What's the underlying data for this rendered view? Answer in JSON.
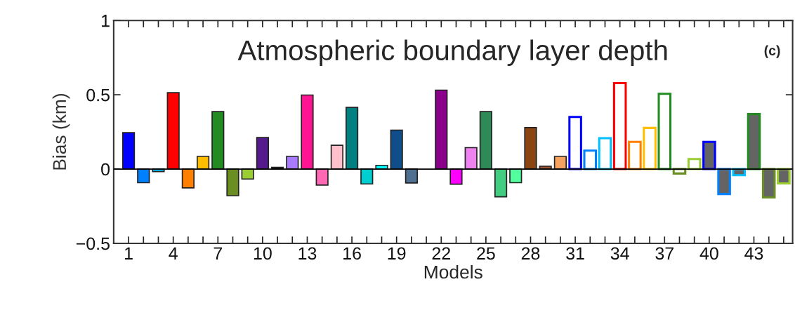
{
  "chart_data": {
    "type": "bar",
    "title": "Atmospheric boundary layer depth",
    "xlabel": "Models",
    "ylabel": "Bias (km)",
    "annotations": [
      "(c)"
    ],
    "x": [
      1,
      2,
      3,
      4,
      5,
      6,
      7,
      8,
      9,
      10,
      11,
      12,
      13,
      14,
      15,
      16,
      17,
      18,
      19,
      20,
      21,
      22,
      23,
      24,
      25,
      26,
      27,
      28,
      29,
      30,
      31,
      32,
      33,
      34,
      35,
      36,
      37,
      38,
      39,
      40,
      41,
      42,
      43,
      44,
      45
    ],
    "series": [
      {
        "values": [
          0.245,
          -0.092,
          -0.017,
          0.514,
          -0.127,
          0.085,
          0.387,
          -0.179,
          -0.067,
          0.212,
          0.011,
          0.085,
          0.498,
          -0.108,
          0.16,
          0.415,
          -0.1,
          0.025,
          0.262,
          -0.094,
          null,
          0.531,
          -0.102,
          0.144,
          0.387,
          -0.187,
          -0.092,
          0.279,
          0.019,
          0.085,
          null,
          null,
          null,
          null,
          null,
          null,
          null,
          null,
          null,
          null,
          null,
          null,
          null,
          null,
          null
        ],
        "colors": [
          "#0000ff",
          "#0080ff",
          "#00bfff",
          "#ff0000",
          "#ff8000",
          "#ffbf00",
          "#228b22",
          "#6b8e23",
          "#9acd32",
          "#551a8b",
          "#000000",
          "#a97bff",
          "#ff1493",
          "#ff69b4",
          "#ffc0cb",
          "#008080",
          "#00ced1",
          "#00ffff",
          "#104e8b",
          "#4f7090",
          null,
          "#8b008b",
          "#ff00ff",
          "#ee82ee",
          "#2e8b57",
          "#43cd80",
          "#54ff9f",
          "#8b4513",
          "#a0522d",
          "#f4a460",
          null,
          null,
          null,
          null,
          null,
          null,
          null,
          null,
          null,
          null,
          null,
          null,
          null,
          null,
          null
        ]
      },
      {
        "color": "#ffffff",
        "values": [
          null,
          null,
          null,
          null,
          null,
          null,
          null,
          null,
          null,
          null,
          null,
          null,
          null,
          null,
          null,
          null,
          null,
          null,
          null,
          null,
          null,
          null,
          null,
          null,
          null,
          null,
          null,
          null,
          null,
          null,
          0.351,
          0.124,
          0.208,
          0.578,
          0.183,
          0.277,
          0.506,
          -0.03,
          0.067,
          null,
          null,
          null,
          null,
          null,
          null
        ],
        "colors": [
          null,
          null,
          null,
          null,
          null,
          null,
          null,
          null,
          null,
          null,
          null,
          null,
          null,
          null,
          null,
          null,
          null,
          null,
          null,
          null,
          null,
          null,
          null,
          null,
          null,
          null,
          null,
          null,
          null,
          null,
          "#0000ff",
          "#0080ff",
          "#00bfff",
          "#ff0000",
          "#ff8000",
          "#ffbf00",
          "#228b22",
          "#6b8e23",
          "#9acd32",
          null,
          null,
          null,
          null,
          null,
          null
        ]
      },
      {
        "color": "#646464",
        "values": [
          null,
          null,
          null,
          null,
          null,
          null,
          null,
          null,
          null,
          null,
          null,
          null,
          null,
          null,
          null,
          null,
          null,
          null,
          null,
          null,
          null,
          null,
          null,
          null,
          null,
          null,
          null,
          null,
          null,
          null,
          null,
          null,
          null,
          null,
          null,
          null,
          null,
          null,
          null,
          0.183,
          -0.168,
          -0.041,
          0.37,
          -0.191,
          -0.097
        ],
        "colors": [
          null,
          null,
          null,
          null,
          null,
          null,
          null,
          null,
          null,
          null,
          null,
          null,
          null,
          null,
          null,
          null,
          null,
          null,
          null,
          null,
          null,
          null,
          null,
          null,
          null,
          null,
          null,
          null,
          null,
          null,
          null,
          null,
          null,
          null,
          null,
          null,
          null,
          null,
          null,
          "#0000ff",
          "#0080ff",
          "#00bfff",
          "#228b22",
          "#6b8e23",
          "#9acd32"
        ]
      }
    ],
    "ref_lines": [
      {
        "axis": "y",
        "value": 0,
        "color": "#000000"
      }
    ],
    "xlim": [
      0,
      45.6
    ],
    "xticks": [
      1,
      {
        "value": 2,
        "label": null
      },
      {
        "value": 3,
        "label": null
      },
      4,
      {
        "value": 5,
        "label": null
      },
      {
        "value": 6,
        "label": null
      },
      7,
      {
        "value": 8,
        "label": null
      },
      {
        "value": 9,
        "label": null
      },
      10,
      {
        "value": 11,
        "label": null
      },
      {
        "value": 12,
        "label": null
      },
      13,
      {
        "value": 14,
        "label": null
      },
      {
        "value": 15,
        "label": null
      },
      16,
      {
        "value": 17,
        "label": null
      },
      {
        "value": 18,
        "label": null
      },
      19,
      {
        "value": 20,
        "label": null
      },
      {
        "value": 21,
        "label": null
      },
      22,
      {
        "value": 23,
        "label": null
      },
      {
        "value": 24,
        "label": null
      },
      25,
      {
        "value": 26,
        "label": null
      },
      {
        "value": 27,
        "label": null
      },
      28,
      {
        "value": 29,
        "label": null
      },
      {
        "value": 30,
        "label": null
      },
      31,
      {
        "value": 32,
        "label": null
      },
      {
        "value": 33,
        "label": null
      },
      34,
      {
        "value": 35,
        "label": null
      },
      {
        "value": 36,
        "label": null
      },
      37,
      {
        "value": 38,
        "label": null
      },
      {
        "value": 39,
        "label": null
      },
      40,
      {
        "value": 41,
        "label": null
      },
      {
        "value": 42,
        "label": null
      },
      43,
      {
        "value": 44,
        "label": null
      },
      {
        "value": 45,
        "label": null
      }
    ],
    "ylim": [
      -0.5,
      1
    ],
    "yticks": [
      {
        "value": -0.5,
        "label": "−0.5"
      },
      0,
      0.5,
      1
    ],
    "grid": false,
    "legend": false
  }
}
